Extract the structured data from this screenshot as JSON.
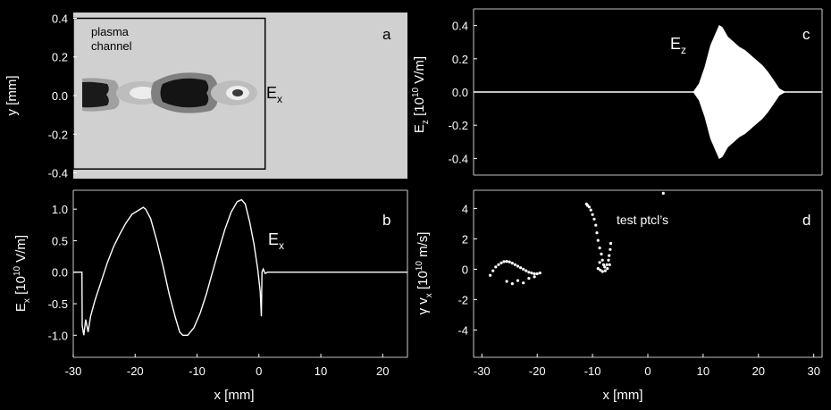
{
  "chart_data": [
    {
      "panel": "a",
      "type": "heatmap",
      "label_letter": "a",
      "annotation": "plasma channel",
      "annotation_lines": [
        "plasma",
        "channel"
      ],
      "field_label": {
        "main": "E",
        "sub": "x"
      },
      "ylabel": {
        "main": "y  [mm]"
      },
      "yticks": [
        "0.4",
        "0.2",
        "0.0",
        "-0.2",
        "-0.4"
      ],
      "ytick_values": [
        0.4,
        0.2,
        0.0,
        -0.2,
        -0.4
      ],
      "ylim": [
        -0.43,
        0.43
      ],
      "xlim": [
        -30,
        24
      ],
      "channel_x": [
        -30,
        1
      ],
      "channel_y": [
        -0.38,
        0.4
      ],
      "colors": {
        "background": "#d0d0d0",
        "box": "#000000"
      }
    },
    {
      "panel": "b",
      "type": "line",
      "label_letter": "b",
      "field_label": {
        "main": "E",
        "sub": "x"
      },
      "ylabel": {
        "main": "E",
        "sub": "x",
        "unit_pre": "[10",
        "unit_exp": "10",
        "unit_post": " V/m]"
      },
      "yticks": [
        "1.0",
        "0.5",
        "0.0",
        "-0.5",
        "-1.0"
      ],
      "ytick_values": [
        1.0,
        0.5,
        0.0,
        -0.5,
        -1.0
      ],
      "ylim": [
        -1.35,
        1.3
      ],
      "xlim": [
        -30,
        24
      ],
      "xticks": [
        "-30",
        "-20",
        "-10",
        "0",
        "10",
        "20"
      ],
      "xtick_values": [
        -30,
        -20,
        -10,
        0,
        10,
        20
      ],
      "xlabel": "x  [mm]",
      "series": [
        {
          "x": [
            -30,
            -28.6,
            -28.55,
            -28.3,
            -28.0,
            -27.6,
            -27.2,
            -26.5,
            -25.5,
            -24.5,
            -23.5,
            -22.5,
            -21.5,
            -20.5,
            -19.5,
            -18.7,
            -18.3,
            -17.5,
            -16.5,
            -15.5,
            -14.5,
            -13.5,
            -12.8,
            -12.3,
            -11.5,
            -10.5,
            -9.5,
            -8.5,
            -7.5,
            -6.5,
            -5.5,
            -4.5,
            -3.5,
            -2.8,
            -2.2,
            -1.5,
            -0.8,
            -0.2,
            0.2,
            0.4,
            0.5,
            0.7,
            1.0,
            1.4,
            24
          ],
          "y": [
            0.0,
            0.0,
            -0.85,
            -1.0,
            -0.75,
            -0.95,
            -0.7,
            -0.45,
            -0.15,
            0.15,
            0.4,
            0.6,
            0.78,
            0.92,
            0.98,
            1.03,
            1.0,
            0.85,
            0.5,
            0.1,
            -0.35,
            -0.72,
            -0.95,
            -1.0,
            -1.0,
            -0.88,
            -0.65,
            -0.35,
            0.0,
            0.35,
            0.68,
            0.95,
            1.12,
            1.15,
            1.08,
            0.8,
            0.45,
            0.05,
            -0.3,
            -0.7,
            0.0,
            0.05,
            -0.02,
            0.0,
            0.0
          ]
        }
      ]
    },
    {
      "panel": "c",
      "type": "area",
      "label_letter": "c",
      "field_label": {
        "main": "E",
        "sub": "z"
      },
      "ylabel": {
        "main": "E",
        "sub": "z",
        "unit_pre": "[10",
        "unit_exp": "10",
        "unit_post": " V/m]"
      },
      "yticks": [
        "0.4",
        "0.2",
        "0.0",
        "-0.2",
        "-0.4"
      ],
      "ytick_values": [
        0.4,
        0.2,
        0.0,
        -0.2,
        -0.4
      ],
      "ylim": [
        -0.5,
        0.5
      ],
      "xlim": [
        -30,
        31
      ],
      "series": [
        {
          "x": [
            -30,
            8.5,
            9.5,
            10.5,
            11.5,
            12.5,
            13.0,
            13.5,
            14.5,
            15.5,
            16.5,
            17.5,
            18.5,
            19.5,
            20.5,
            21.5,
            22.5,
            23.5,
            24.5,
            31
          ],
          "y": [
            0.0,
            0.0,
            0.05,
            0.15,
            0.28,
            0.36,
            0.4,
            0.39,
            0.33,
            0.3,
            0.27,
            0.25,
            0.22,
            0.19,
            0.16,
            0.12,
            0.07,
            0.02,
            0.0,
            0.0
          ]
        }
      ]
    },
    {
      "panel": "d",
      "type": "scatter",
      "label_letter": "d",
      "annotation": "test ptcl’s",
      "ylabel": {
        "main": "γ v",
        "sub": "x",
        "unit_pre": "[10",
        "unit_exp": "10",
        "unit_post": " m/s]"
      },
      "yticks": [
        "4",
        "2",
        "0",
        "-2",
        "-4"
      ],
      "ytick_values": [
        4,
        2,
        0,
        -2,
        -4
      ],
      "ylim": [
        -5.8,
        5.2
      ],
      "xlim": [
        -31.5,
        31.5
      ],
      "xticks": [
        "-30",
        "-20",
        "-10",
        "0",
        "10",
        "20",
        "30"
      ],
      "xtick_values": [
        -30,
        -20,
        -10,
        0,
        10,
        20,
        30
      ],
      "xlabel": "x  [mm]",
      "series": [
        {
          "x": [
            -11.1,
            -10.9,
            -10.6,
            -10.3,
            -10.0,
            -9.7,
            -9.4,
            -9.2,
            -9.0,
            -8.7,
            -8.4,
            -8.2,
            -8.0,
            -7.8,
            -7.4,
            -7.1,
            -7.0,
            -6.8,
            -6.7,
            -6.9,
            -7.3,
            -7.7,
            -8.2,
            -8.6,
            -9.0,
            -8.7,
            -28.5,
            -28.0,
            -27.5,
            -27.0,
            -26.5,
            -26.0,
            -25.5,
            -25.0,
            -24.5,
            -24.0,
            -23.5,
            -23.0,
            -22.5,
            -22.0,
            -21.5,
            -21.0,
            -20.5,
            -20.0,
            -19.5,
            -25.5,
            -24.5,
            -23.5,
            -22.5,
            -21.5,
            -20.5,
            2.8
          ],
          "y": [
            4.3,
            4.2,
            4.1,
            3.9,
            3.6,
            3.3,
            2.9,
            2.4,
            1.9,
            1.4,
            1.0,
            0.6,
            0.3,
            0.15,
            0.3,
            0.6,
            0.9,
            1.3,
            1.7,
            0.3,
            0.05,
            -0.1,
            -0.15,
            -0.05,
            0.05,
            0.45,
            -0.4,
            -0.1,
            0.15,
            0.3,
            0.42,
            0.5,
            0.52,
            0.48,
            0.4,
            0.3,
            0.2,
            0.1,
            0.0,
            -0.1,
            -0.2,
            -0.25,
            -0.3,
            -0.3,
            -0.25,
            -0.8,
            -0.95,
            -0.75,
            -0.9,
            -0.6,
            -0.5,
            5.0
          ]
        }
      ]
    }
  ]
}
